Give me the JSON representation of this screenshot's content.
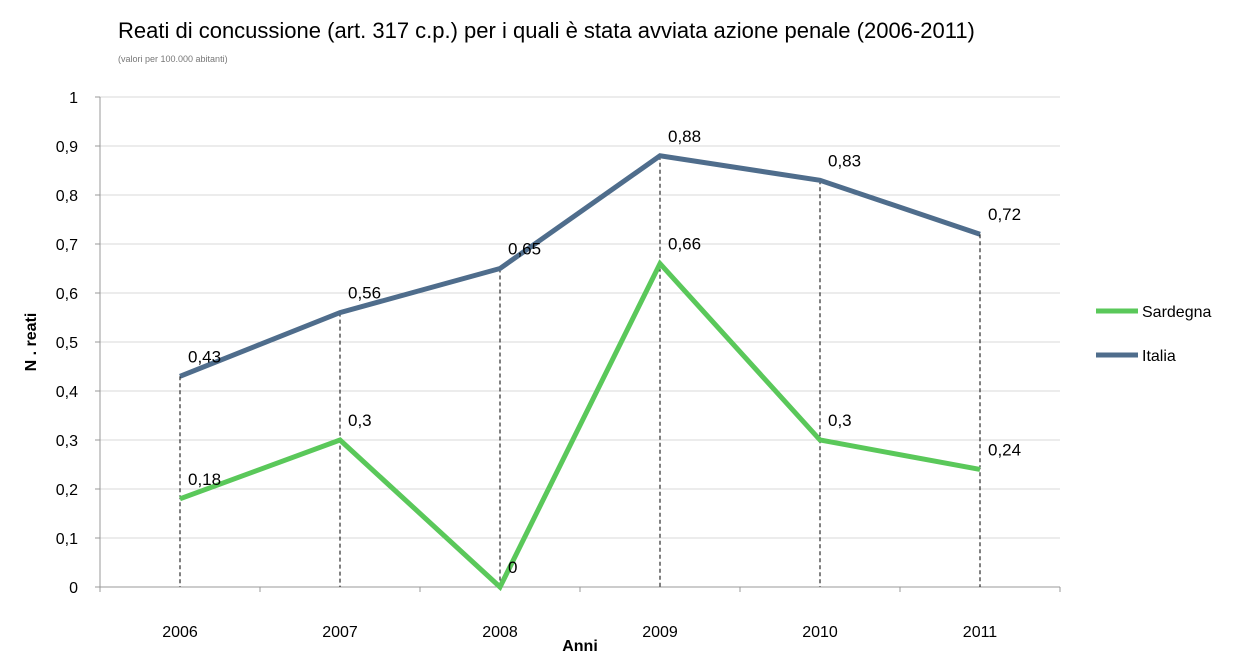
{
  "chart_data": {
    "type": "line",
    "title": "Reati di concussione (art. 317 c.p.) per i quali è stata avviata azione penale (2006-2011)",
    "subtitle": "(valori per 100.000 abitanti)",
    "xlabel": "Anni",
    "ylabel": "N . reati",
    "categories": [
      "2006",
      "2007",
      "2008",
      "2009",
      "2010",
      "2011"
    ],
    "ylim": [
      0,
      1
    ],
    "ytick_labels": [
      "0",
      "0,1",
      "0,2",
      "0,3",
      "0,4",
      "0,5",
      "0,6",
      "0,7",
      "0,8",
      "0,9",
      "1"
    ],
    "grid": true,
    "legend_position": "right",
    "series": [
      {
        "name": "Sardegna",
        "color": "#5ac85a",
        "values": [
          0.18,
          0.3,
          0,
          0.66,
          0.3,
          0.24
        ],
        "labels": [
          "0,18",
          "0,3",
          "0",
          "0,66",
          "0,3",
          "0,24"
        ]
      },
      {
        "name": "Italia",
        "color": "#4f6d8c",
        "values": [
          0.43,
          0.56,
          0.65,
          0.88,
          0.83,
          0.72
        ],
        "labels": [
          "0,43",
          "0,56",
          "0,65",
          "0,88",
          "0,83",
          "0,72"
        ]
      }
    ]
  }
}
